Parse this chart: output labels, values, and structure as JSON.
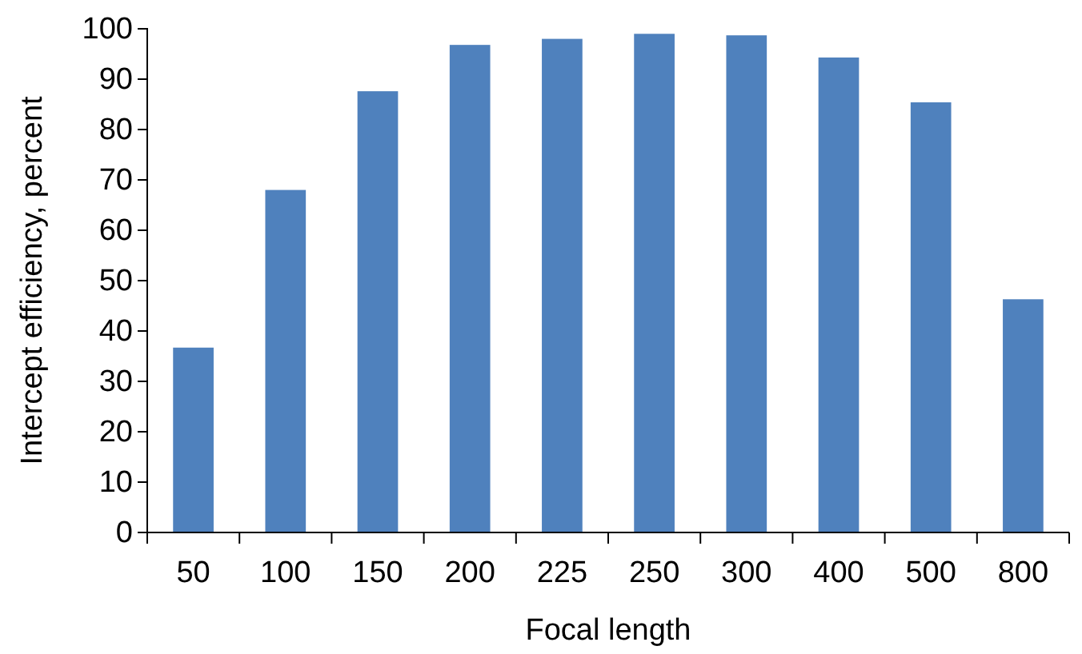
{
  "chart_data": {
    "type": "bar",
    "xlabel": "Focal length",
    "ylabel": "Intercept efficiency, percent",
    "categories": [
      "50",
      "100",
      "150",
      "200",
      "225",
      "250",
      "300",
      "400",
      "500",
      "800"
    ],
    "values": [
      36.7,
      68,
      87.6,
      96.8,
      98,
      99,
      98.7,
      94.3,
      85.4,
      46.3
    ],
    "color": "#4f81bd",
    "ylim": [
      0,
      100
    ],
    "yticks": [
      0,
      10,
      20,
      30,
      40,
      50,
      60,
      70,
      80,
      90,
      100
    ],
    "grid": false
  }
}
